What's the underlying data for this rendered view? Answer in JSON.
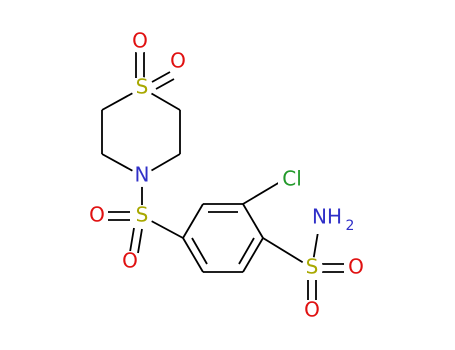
{
  "atoms": [
    {
      "label": "O"
    },
    {
      "label": "O"
    },
    {
      "label": "S"
    },
    {
      "label": "N"
    },
    {
      "label": "O"
    },
    {
      "label": "S"
    },
    {
      "label": "O"
    },
    {
      "label": "Cl"
    },
    {
      "label": "NH",
      "subscript": "2"
    },
    {
      "label": "S"
    },
    {
      "label": "O"
    },
    {
      "label": "O"
    }
  ]
}
